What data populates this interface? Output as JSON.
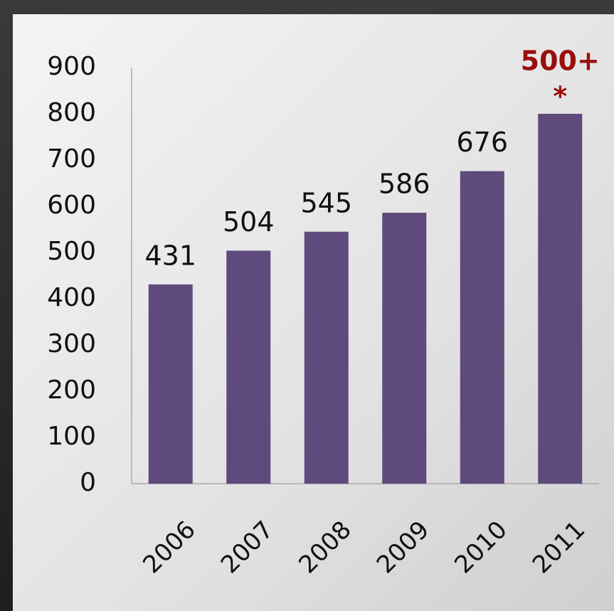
{
  "chart_data": {
    "type": "bar",
    "categories": [
      "2006",
      "2007",
      "2008",
      "2009",
      "2010",
      "2011"
    ],
    "values": [
      431,
      504,
      545,
      586,
      676,
      800
    ],
    "show_value_labels": [
      true,
      true,
      true,
      true,
      true,
      false
    ],
    "color": "#5f4a7d",
    "annotation": {
      "text": "500+",
      "note": "*",
      "color": "#9b0d0d"
    },
    "ylim": [
      0,
      900
    ],
    "yticks": [
      0,
      100,
      200,
      300,
      400,
      500,
      600,
      700,
      800,
      900
    ],
    "grid": false
  }
}
